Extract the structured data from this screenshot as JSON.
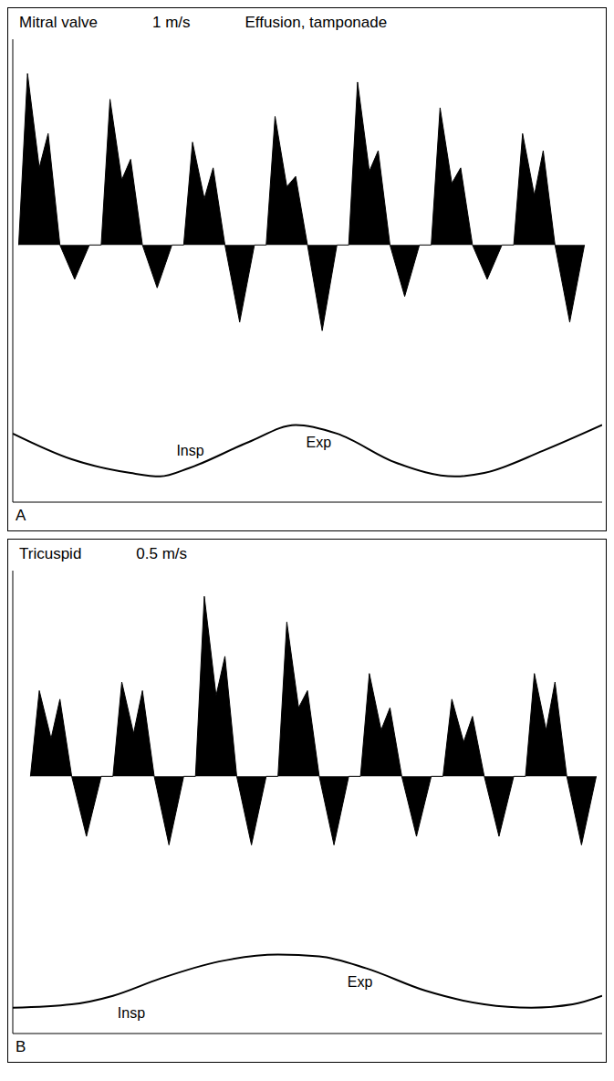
{
  "chart_data": [
    {
      "type": "area",
      "title": "Mitral valve",
      "scale_label": "1 m/s",
      "subtitle": "Effusion, tamponade",
      "panel_label": "A",
      "xlim": [
        0,
        100
      ],
      "ylim": [
        -1.5,
        1.2
      ],
      "grid": false,
      "tick_labels": false,
      "series": [
        {
          "type": "area",
          "color": "#000000",
          "x": [
            1,
            2.5,
            4.5,
            6,
            8,
            10.5,
            13,
            15,
            16.5,
            18.5,
            20,
            22,
            24.5,
            27,
            29,
            30.5,
            32.5,
            34,
            36,
            38.5,
            41,
            43,
            44.5,
            46.5,
            48,
            50,
            52.5,
            55,
            57,
            58.5,
            60.5,
            62,
            64,
            66.5,
            69,
            71,
            72.5,
            74.5,
            76,
            78,
            80.5,
            83,
            85,
            86.5,
            88.5,
            90,
            92,
            94.5,
            97
          ],
          "values": [
            0,
            1.0,
            0.45,
            0.65,
            0,
            -0.2,
            0,
            0,
            0.85,
            0.38,
            0.5,
            0,
            -0.25,
            0,
            0,
            0.6,
            0.27,
            0.45,
            0,
            -0.45,
            0,
            0,
            0.75,
            0.34,
            0.4,
            0,
            -0.5,
            0,
            0,
            0.95,
            0.43,
            0.55,
            0,
            -0.3,
            0,
            0,
            0.8,
            0.36,
            0.45,
            0,
            -0.2,
            0,
            0,
            0.65,
            0.29,
            0.55,
            0,
            -0.45,
            0
          ]
        },
        {
          "type": "line",
          "color": "#000000",
          "x": [
            0,
            10,
            20,
            25,
            30,
            40,
            48,
            55,
            65,
            75,
            80,
            90,
            100
          ],
          "values": [
            -1.1,
            -1.25,
            -1.33,
            -1.35,
            -1.3,
            -1.15,
            -1.05,
            -1.1,
            -1.27,
            -1.35,
            -1.33,
            -1.2,
            -1.05
          ]
        }
      ],
      "annotations": [
        {
          "text": "Insp",
          "x": 27,
          "y": -1.2
        },
        {
          "text": "Exp",
          "x": 49,
          "y": -1.15
        }
      ]
    },
    {
      "type": "area",
      "title": "Tricuspid",
      "scale_label": "0.5 m/s",
      "panel_label": "B",
      "xlim": [
        0,
        100
      ],
      "ylim": [
        -1.5,
        1.2
      ],
      "grid": false,
      "tick_labels": false,
      "series": [
        {
          "type": "area",
          "color": "#000000",
          "x": [
            3,
            4.5,
            6.5,
            8,
            10,
            12.5,
            15,
            17,
            18.5,
            20.5,
            22,
            24,
            26.5,
            29,
            31,
            32.5,
            34.5,
            36,
            38,
            40.5,
            43,
            45,
            46.5,
            48.5,
            50,
            52,
            54.5,
            57,
            59,
            60.5,
            62.5,
            64,
            66,
            68.5,
            71,
            73,
            74.5,
            76.5,
            78,
            80,
            82.5,
            85,
            87,
            88.5,
            90.5,
            92,
            94,
            96.5,
            99
          ],
          "values": [
            0,
            0.5,
            0.22,
            0.45,
            0,
            -0.35,
            0,
            0,
            0.55,
            0.25,
            0.5,
            0,
            -0.4,
            0,
            0,
            1.05,
            0.47,
            0.7,
            0,
            -0.4,
            0,
            0,
            0.9,
            0.4,
            0.5,
            0,
            -0.4,
            0,
            0,
            0.6,
            0.27,
            0.4,
            0,
            -0.35,
            0,
            0,
            0.45,
            0.2,
            0.35,
            0,
            -0.35,
            0,
            0,
            0.6,
            0.27,
            0.55,
            0,
            -0.4,
            0
          ]
        },
        {
          "type": "line",
          "color": "#000000",
          "x": [
            0,
            10,
            17,
            25,
            35,
            45,
            52,
            60,
            70,
            80,
            88,
            95,
            100
          ],
          "values": [
            -1.35,
            -1.33,
            -1.28,
            -1.18,
            -1.08,
            -1.04,
            -1.05,
            -1.12,
            -1.25,
            -1.33,
            -1.35,
            -1.33,
            -1.28
          ]
        }
      ],
      "annotations": [
        {
          "text": "Insp",
          "x": 17,
          "y": -1.38
        },
        {
          "text": "Exp",
          "x": 56,
          "y": -1.2
        }
      ]
    }
  ]
}
